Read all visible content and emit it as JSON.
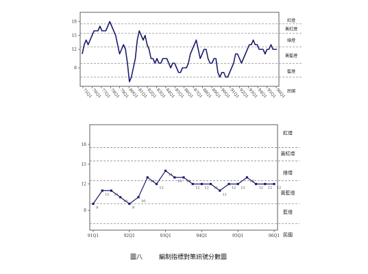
{
  "caption": {
    "figure_no": "圖八",
    "title": "編制指標對策訊號分數圖"
  },
  "chart_data": [
    {
      "type": "line",
      "x_unit_label": "民國",
      "ylim": [
        4,
        20
      ],
      "y_ticks": [
        "8",
        "12",
        "15",
        "18"
      ],
      "y_tick_values": [
        8,
        12,
        15,
        18
      ],
      "thresholds": [
        {
          "value": 17.5,
          "label": "紅燈"
        },
        {
          "value": 15.5,
          "label": "黃紅燈"
        },
        {
          "value": 12.5,
          "label": "綠燈"
        },
        {
          "value": 9.0,
          "label": "黃藍燈"
        },
        {
          "value": 6.0,
          "label": "藍燈"
        }
      ],
      "band_labels": [
        {
          "label": "紅燈",
          "value": 18.2
        },
        {
          "label": "黃紅燈",
          "value": 16.4
        },
        {
          "label": "綠燈",
          "value": 13.9
        },
        {
          "label": "黃藍燈",
          "value": 10.6
        },
        {
          "label": "藍燈",
          "value": 7.2
        }
      ],
      "x_tick_labels": [
        "75Q1",
        "76Q1",
        "77Q1",
        "78Q1",
        "79Q1",
        "80Q1",
        "81Q1",
        "82Q1",
        "83Q1",
        "84Q1",
        "85Q1",
        "86Q1",
        "87Q1",
        "88Q1",
        "89Q1",
        "90Q1",
        "91Q1",
        "92Q1",
        "93Q1",
        "94Q1",
        "95Q1",
        "96Q1"
      ],
      "series": [
        {
          "values": [
            11,
            13,
            14,
            13,
            14,
            15,
            16,
            16,
            16,
            17,
            16,
            16,
            16,
            17,
            18,
            17,
            16,
            15,
            13,
            11,
            12,
            13,
            12,
            9,
            5,
            6,
            8,
            10,
            14,
            16,
            15,
            14,
            15,
            13,
            12,
            10,
            10,
            9,
            10,
            9,
            9,
            10,
            10,
            10,
            9,
            8,
            9,
            9,
            8,
            7,
            7,
            8,
            8,
            8,
            9,
            11,
            12,
            13,
            14,
            12,
            10,
            11,
            12,
            12,
            10,
            9,
            9,
            10,
            10,
            7,
            6,
            7,
            7,
            6,
            6,
            7,
            8,
            9,
            11,
            11,
            10,
            9,
            10,
            11,
            12,
            13,
            13,
            14,
            13,
            13,
            12,
            12,
            12,
            11,
            12,
            12,
            13,
            12,
            12,
            12
          ]
        }
      ]
    },
    {
      "type": "line",
      "x_unit_label": "民國",
      "ylim": [
        5,
        21
      ],
      "y_ticks": [
        "8",
        "12",
        "15",
        "18"
      ],
      "y_tick_values": [
        8,
        12,
        15,
        18
      ],
      "thresholds": [
        {
          "value": 17.5,
          "label": "紅燈"
        },
        {
          "value": 15.5,
          "label": "黃紅燈"
        },
        {
          "value": 12.5,
          "label": "綠燈"
        },
        {
          "value": 9.0,
          "label": "黃藍燈"
        },
        {
          "value": 6.0,
          "label": "藍燈"
        }
      ],
      "band_labels": [
        {
          "label": "紅燈",
          "value": 19.7
        },
        {
          "label": "黃紅燈",
          "value": 16.6
        },
        {
          "label": "綠燈",
          "value": 13.7
        },
        {
          "label": "黃藍燈",
          "value": 10.6
        },
        {
          "label": "藍燈",
          "value": 7.7
        }
      ],
      "x_tick_labels": [
        "91Q1",
        "92Q1",
        "93Q1",
        "94Q1",
        "95Q1",
        "96Q1"
      ],
      "series": [
        {
          "values": [
            9,
            11,
            11,
            10,
            9,
            10,
            13,
            12,
            14,
            13,
            13,
            12,
            12,
            12,
            11,
            12,
            12,
            13,
            12,
            12,
            12
          ],
          "point_labels": [
            "9",
            "11",
            "11",
            "10",
            "9",
            "10",
            "13",
            "12",
            "14",
            "13",
            "13",
            "12",
            "12",
            "12",
            "11",
            "12",
            "12",
            "13",
            "12",
            "12",
            "12"
          ]
        }
      ]
    }
  ]
}
